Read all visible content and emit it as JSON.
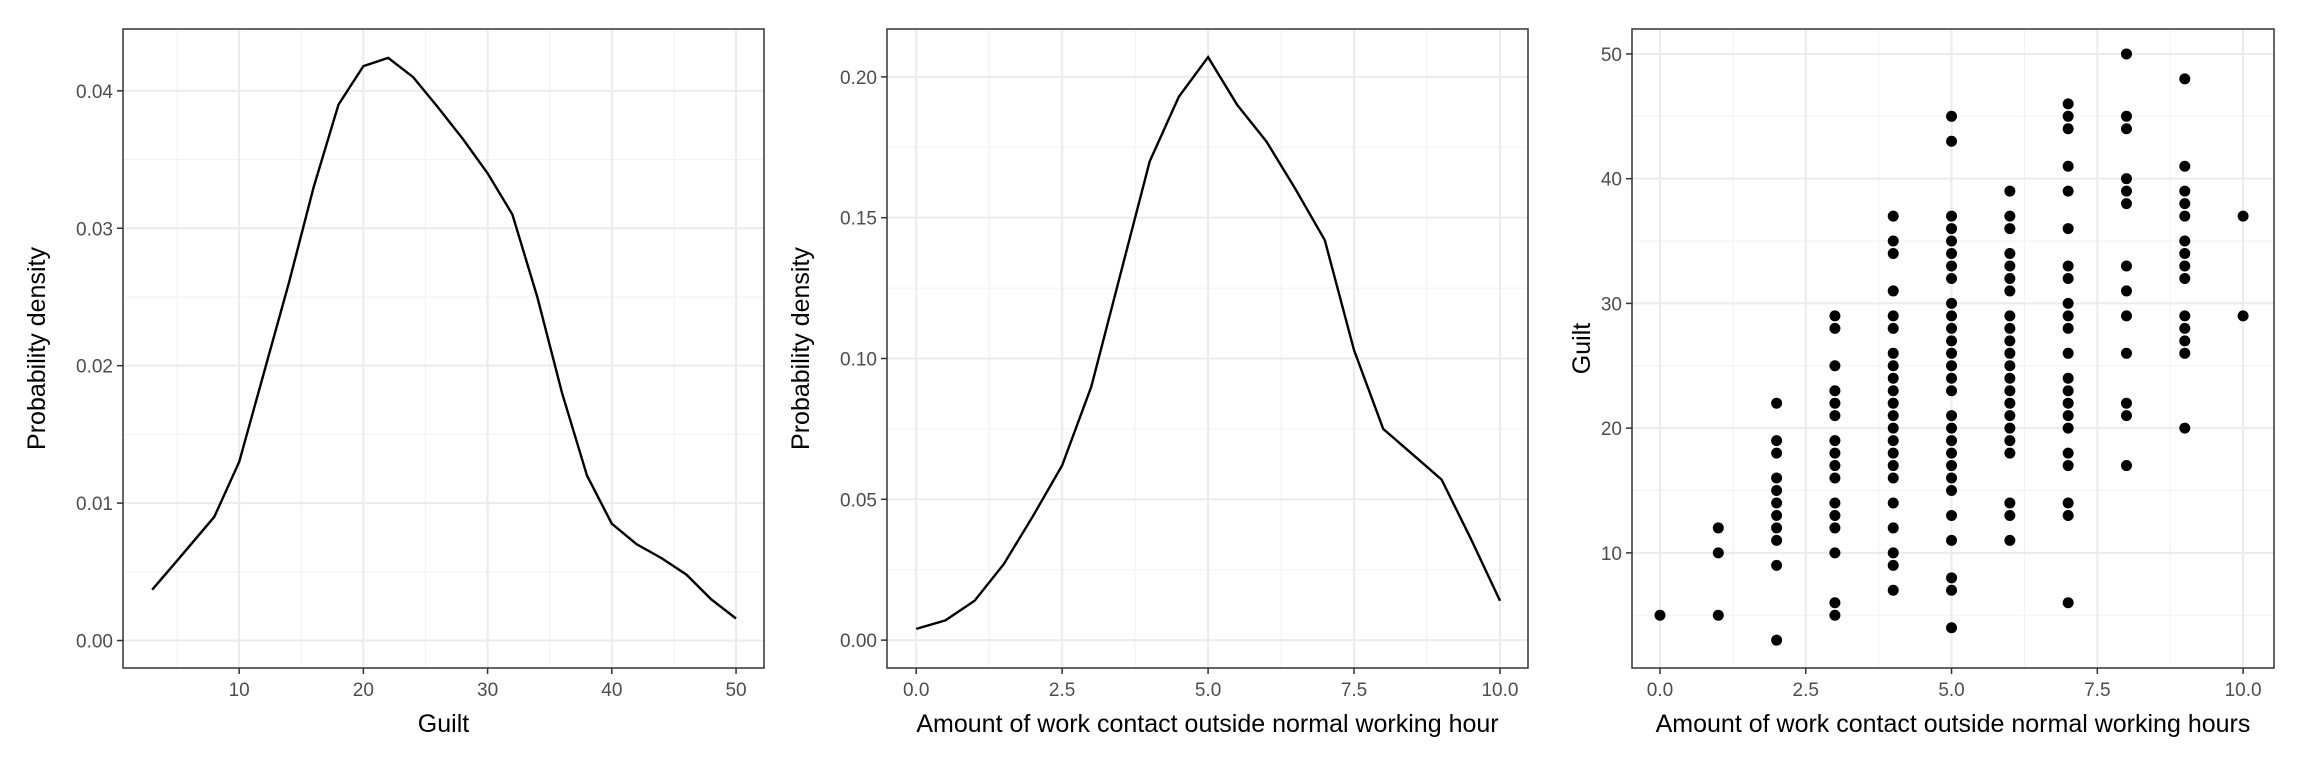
{
  "chart_data": [
    {
      "type": "line",
      "x_label": "Guilt",
      "y_label": "Probability density",
      "color": "#000000",
      "grid": true,
      "x": [
        3,
        5,
        8,
        10,
        12,
        14,
        16,
        18,
        20,
        22,
        24,
        26,
        28,
        30,
        32,
        34,
        36,
        38,
        40,
        42,
        44,
        46,
        48,
        50
      ],
      "values": [
        0.0037,
        0.0058,
        0.009,
        0.013,
        0.0195,
        0.026,
        0.033,
        0.039,
        0.0418,
        0.0424,
        0.041,
        0.0388,
        0.0365,
        0.034,
        0.031,
        0.025,
        0.018,
        0.012,
        0.0085,
        0.007,
        0.006,
        0.0048,
        0.003,
        0.0016
      ],
      "xlim": [
        0.65,
        52.25
      ],
      "ylim": [
        -0.002,
        0.0445
      ],
      "xticks": [
        10,
        20,
        30,
        40,
        50
      ],
      "yticks": [
        {
          "value": 0,
          "label": "0.00"
        },
        {
          "value": 0.01,
          "label": "0.01"
        },
        {
          "value": 0.02,
          "label": "0.02"
        },
        {
          "value": 0.03,
          "label": "0.03"
        },
        {
          "value": 0.04,
          "label": "0.04"
        }
      ]
    },
    {
      "type": "line",
      "x_label": "Amount of work contact outside normal working hour",
      "y_label": "Probability density",
      "color": "#000000",
      "grid": true,
      "x": [
        0,
        0.5,
        1,
        1.5,
        2,
        2.5,
        3,
        3.5,
        4,
        4.5,
        5,
        5.5,
        6,
        6.5,
        7,
        7.5,
        8,
        8.5,
        9,
        9.5,
        10
      ],
      "values": [
        0.004,
        0.007,
        0.014,
        0.027,
        0.044,
        0.062,
        0.09,
        0.13,
        0.17,
        0.193,
        0.207,
        0.19,
        0.177,
        0.16,
        0.142,
        0.103,
        0.075,
        0.066,
        0.057,
        0.036,
        0.014
      ],
      "xlim": [
        -0.5,
        10.48
      ],
      "ylim": [
        -0.0099,
        0.217
      ],
      "xticks": [
        {
          "value": 0,
          "label": "0.0"
        },
        {
          "value": 2.5,
          "label": "2.5"
        },
        {
          "value": 5,
          "label": "5.0"
        },
        {
          "value": 7.5,
          "label": "7.5"
        },
        {
          "value": 10,
          "label": "10.0"
        }
      ],
      "yticks": [
        {
          "value": 0,
          "label": "0.00"
        },
        {
          "value": 0.05,
          "label": "0.05"
        },
        {
          "value": 0.1,
          "label": "0.10"
        },
        {
          "value": 0.15,
          "label": "0.15"
        },
        {
          "value": 0.2,
          "label": "0.20"
        }
      ]
    },
    {
      "type": "scatter",
      "x_label": "Amount of work contact outside normal working hours",
      "y_label": "Guilt",
      "color": "#000000",
      "grid": true,
      "x": [
        0,
        1,
        1,
        1,
        2,
        2,
        2,
        2,
        2,
        2,
        2,
        2,
        2,
        2,
        2,
        3,
        3,
        3,
        3,
        3,
        3,
        3,
        3,
        3,
        3,
        3,
        3,
        3,
        3,
        3,
        3,
        4,
        4,
        4,
        4,
        4,
        4,
        4,
        4,
        4,
        4,
        4,
        4,
        4,
        4,
        4,
        4,
        4,
        4,
        4,
        4,
        4,
        4,
        5,
        5,
        5,
        5,
        5,
        5,
        5,
        5,
        5,
        5,
        5,
        5,
        5,
        5,
        5,
        5,
        5,
        5,
        5,
        5,
        5,
        5,
        5,
        5,
        5,
        5,
        5,
        5,
        6,
        6,
        6,
        6,
        6,
        6,
        6,
        6,
        6,
        6,
        6,
        6,
        6,
        6,
        6,
        6,
        6,
        6,
        6,
        6,
        6,
        6,
        7,
        7,
        7,
        7,
        7,
        7,
        7,
        7,
        7,
        7,
        7,
        7,
        7,
        7,
        7,
        7,
        7,
        7,
        7,
        7,
        7,
        7,
        8,
        8,
        8,
        8,
        8,
        8,
        8,
        8,
        8,
        8,
        8,
        8,
        8,
        9,
        9,
        9,
        9,
        9,
        9,
        9,
        9,
        9,
        9,
        9,
        9,
        9,
        9,
        10,
        10
      ],
      "values": [
        5,
        5,
        10,
        12,
        3,
        9,
        11,
        12,
        13,
        14,
        15,
        16,
        18,
        19,
        22,
        5,
        6,
        10,
        12,
        13,
        14,
        16,
        17,
        18,
        19,
        21,
        22,
        23,
        25,
        28,
        29,
        7,
        9,
        10,
        12,
        14,
        16,
        17,
        18,
        19,
        20,
        21,
        22,
        23,
        24,
        25,
        26,
        28,
        29,
        31,
        34,
        35,
        37,
        4,
        7,
        8,
        11,
        13,
        15,
        16,
        17,
        18,
        19,
        20,
        21,
        23,
        24,
        25,
        26,
        27,
        28,
        29,
        30,
        32,
        33,
        34,
        35,
        36,
        37,
        43,
        45,
        11,
        13,
        14,
        18,
        19,
        20,
        21,
        22,
        23,
        24,
        25,
        26,
        27,
        28,
        29,
        31,
        32,
        33,
        34,
        36,
        37,
        39,
        6,
        13,
        14,
        17,
        18,
        20,
        21,
        22,
        23,
        24,
        26,
        28,
        29,
        30,
        32,
        33,
        36,
        39,
        41,
        44,
        45,
        46,
        17,
        21,
        22,
        26,
        29,
        31,
        33,
        38,
        39,
        40,
        44,
        45,
        50,
        20,
        26,
        27,
        28,
        29,
        32,
        33,
        34,
        35,
        37,
        38,
        39,
        41,
        48,
        29,
        37
      ],
      "xlim": [
        -0.48,
        10.53
      ],
      "ylim": [
        0.77,
        52.0
      ],
      "xticks": [
        {
          "value": 0,
          "label": "0.0"
        },
        {
          "value": 2.5,
          "label": "2.5"
        },
        {
          "value": 5,
          "label": "5.0"
        },
        {
          "value": 7.5,
          "label": "7.5"
        },
        {
          "value": 10,
          "label": "10.0"
        }
      ],
      "yticks": [
        10,
        20,
        30,
        40,
        50
      ]
    }
  ]
}
